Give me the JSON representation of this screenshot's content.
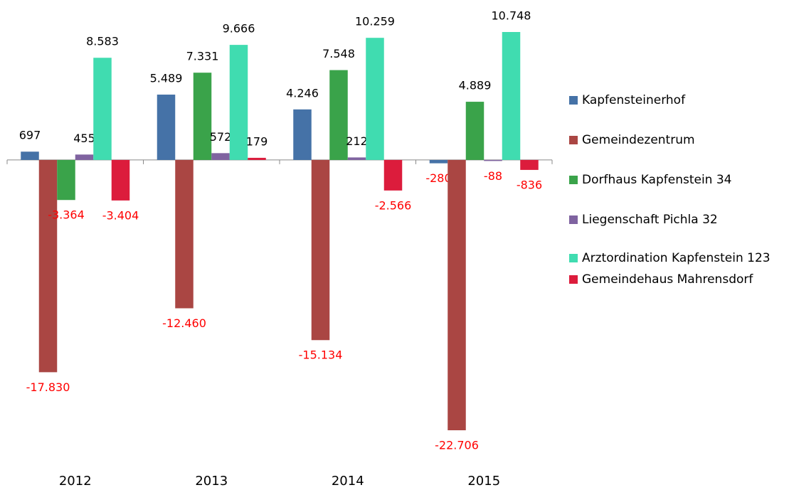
{
  "chart_data": {
    "type": "bar",
    "categories": [
      "2012",
      "2013",
      "2014",
      "2015"
    ],
    "series": [
      {
        "name": "Kapfensteinerhof",
        "color": "#4572a7",
        "values": [
          697,
          5489,
          4246,
          -280
        ],
        "value_labels": [
          "697",
          "5.489",
          "4.246",
          "-280"
        ]
      },
      {
        "name": "Gemeindezentrum",
        "color": "#aa4643",
        "values": [
          -17830,
          -12460,
          -15134,
          -22706
        ],
        "value_labels": [
          "-17.830",
          "-12.460",
          "-15.134",
          "-22.706"
        ]
      },
      {
        "name": "Dorfhaus Kapfenstein 34",
        "color": "#3aa34a",
        "values": [
          -3364,
          7331,
          7548,
          4889
        ],
        "value_labels": [
          "-3.364",
          "7.331",
          "7.548",
          "4.889"
        ]
      },
      {
        "name": "Liegenschaft Pichla 32",
        "color": "#7f63a0",
        "values": [
          455,
          572,
          212,
          -88
        ],
        "value_labels": [
          "455",
          "572",
          "212",
          "-88"
        ]
      },
      {
        "name": "Arztordination Kapfenstein 123",
        "color": "#40dcb0",
        "values": [
          8583,
          9666,
          10259,
          10748
        ],
        "value_labels": [
          "8.583",
          "9.666",
          "10.259",
          "10.748"
        ]
      },
      {
        "name": "Gemeindehaus Mahrensdorf",
        "color": "#dc1c3c",
        "values": [
          -3404,
          179,
          -2566,
          -836
        ],
        "value_labels": [
          "-3.404",
          "179",
          "-2.566",
          "-836"
        ]
      }
    ],
    "legend": "right"
  }
}
